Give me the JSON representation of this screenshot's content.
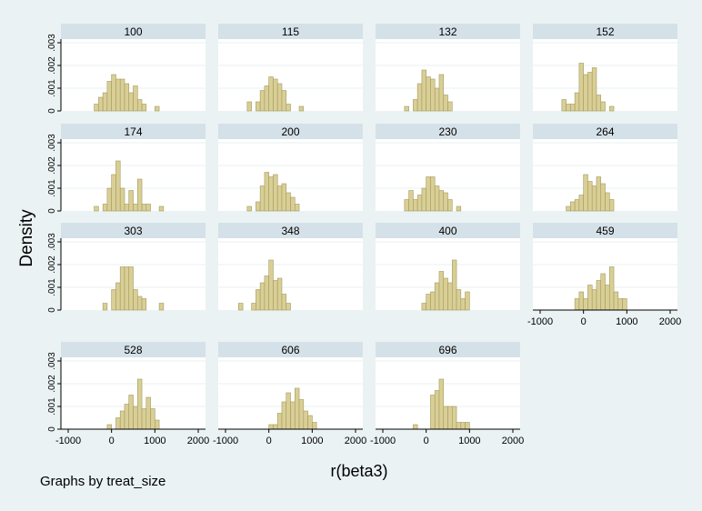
{
  "chart_data": {
    "type": "bar",
    "subtype": "histogram-small-multiples",
    "ylabel": "Density",
    "xlabel": "r(beta3)",
    "note": "Graphs by treat_size",
    "x_ticks": [
      "-1000",
      "0",
      "1000",
      "2000"
    ],
    "xlim": [
      -1000,
      2000
    ],
    "y_ticks": [
      "0",
      ".001",
      ".002",
      ".003"
    ],
    "ylim": [
      0,
      0.003
    ],
    "bin_width": 100,
    "colors": {
      "bar_fill": "#d9cf96",
      "bar_stroke": "#a39a5d",
      "background": "#eaf2f3",
      "plot_bg": "#ffffff",
      "strip": "#d5e1e8",
      "grid": "#eaf2f3"
    },
    "panels": [
      {
        "title": "100",
        "x_start": -400,
        "values": [
          0.0003,
          0.0006,
          0.0008,
          0.0013,
          0.0016,
          0.0014,
          0.0014,
          0.0012,
          0.0008,
          0.0011,
          0.0005,
          0.0003,
          0,
          0,
          0.0002
        ]
      },
      {
        "title": "115",
        "x_start": -500,
        "values": [
          0.0004,
          0,
          0.0004,
          0.0009,
          0.0011,
          0.0015,
          0.0014,
          0.0012,
          0.0009,
          0.0003,
          0,
          0,
          0.0002
        ]
      },
      {
        "title": "132",
        "x_start": -500,
        "values": [
          0.0002,
          0,
          0.0005,
          0.0012,
          0.0018,
          0.0015,
          0.0014,
          0.001,
          0.0016,
          0.0007,
          0.0004
        ]
      },
      {
        "title": "152",
        "x_start": -500,
        "values": [
          0.0005,
          0.0003,
          0.0003,
          0.0008,
          0.0021,
          0.0016,
          0.0017,
          0.0019,
          0.0007,
          0.0004,
          0,
          0.0002
        ]
      },
      {
        "title": "174",
        "x_start": -400,
        "values": [
          0.0002,
          0,
          0.0003,
          0.001,
          0.0016,
          0.0022,
          0.001,
          0.0003,
          0.0009,
          0.0003,
          0.0014,
          0.0003,
          0.0003,
          0,
          0,
          0.0002
        ]
      },
      {
        "title": "200",
        "x_start": -500,
        "values": [
          0.0002,
          0,
          0.0004,
          0.0011,
          0.0017,
          0.0015,
          0.0016,
          0.0011,
          0.0012,
          0.0008,
          0.0006,
          0.0003
        ]
      },
      {
        "title": "230",
        "x_start": -500,
        "values": [
          0.0005,
          0.0009,
          0.0005,
          0.0007,
          0.001,
          0.0015,
          0.0015,
          0.0011,
          0.0009,
          0.0008,
          0.0005,
          0,
          0.0002
        ]
      },
      {
        "title": "264",
        "x_start": -400,
        "values": [
          0.0002,
          0.0004,
          0.0005,
          0.0007,
          0.0016,
          0.0013,
          0.0011,
          0.0015,
          0.0012,
          0.0008,
          0.0005
        ]
      },
      {
        "title": "303",
        "x_start": -200,
        "values": [
          0.0003,
          0,
          0.0009,
          0.0012,
          0.0019,
          0.0019,
          0.0019,
          0.0009,
          0.0006,
          0.0005,
          0,
          0,
          0,
          0.0003
        ]
      },
      {
        "title": "348",
        "x_start": -700,
        "values": [
          0.0003,
          0,
          0,
          0.0003,
          0.0009,
          0.0012,
          0.0015,
          0.0022,
          0.0013,
          0.0014,
          0.0007,
          0.0003
        ]
      },
      {
        "title": "400",
        "x_start": -100,
        "values": [
          0.0003,
          0.0007,
          0.0008,
          0.0012,
          0.0017,
          0.0014,
          0.0012,
          0.0022,
          0.0009,
          0.0005,
          0.0008
        ]
      },
      {
        "title": "459",
        "x_start": -200,
        "values": [
          0.0005,
          0.0008,
          0.0005,
          0.0011,
          0.0009,
          0.0013,
          0.0016,
          0.0011,
          0.0019,
          0.0008,
          0.0005,
          0.0005
        ]
      },
      {
        "title": "528",
        "x_start": -100,
        "values": [
          0.0002,
          0,
          0.0005,
          0.0008,
          0.0011,
          0.0015,
          0.001,
          0.0022,
          0.0009,
          0.0014,
          0.0009,
          0.0004
        ]
      },
      {
        "title": "606",
        "x_start": 0,
        "values": [
          0.0002,
          0.0002,
          0.0007,
          0.0012,
          0.0016,
          0.0012,
          0.0018,
          0.0013,
          0.0008,
          0.0006,
          0.0003
        ]
      },
      {
        "title": "696",
        "x_start": -300,
        "values": [
          0.0002,
          0,
          0,
          0,
          0.0015,
          0.0017,
          0.0022,
          0.001,
          0.001,
          0.001,
          0.0003,
          0.0003,
          0.0003
        ]
      }
    ]
  }
}
